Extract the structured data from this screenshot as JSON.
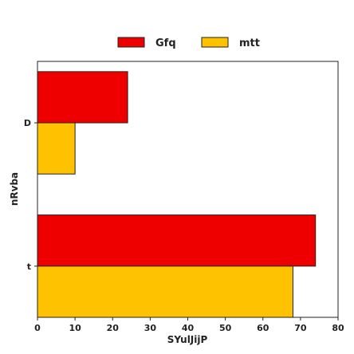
{
  "chart_data": {
    "type": "bar",
    "orientation": "horizontal",
    "categories": [
      "D",
      "t"
    ],
    "series": [
      {
        "name": "Gfq",
        "values": [
          24,
          74
        ],
        "color": "#ee0000"
      },
      {
        "name": "mtt",
        "values": [
          10,
          68
        ],
        "color": "#ffc200"
      }
    ],
    "xlabel": "SYulJijP",
    "ylabel": "nRvba",
    "xlim": [
      0,
      80
    ],
    "xticks": [
      0,
      10,
      20,
      30,
      40,
      50,
      60,
      70,
      80
    ],
    "grid": false,
    "legend_position": "top-center"
  }
}
